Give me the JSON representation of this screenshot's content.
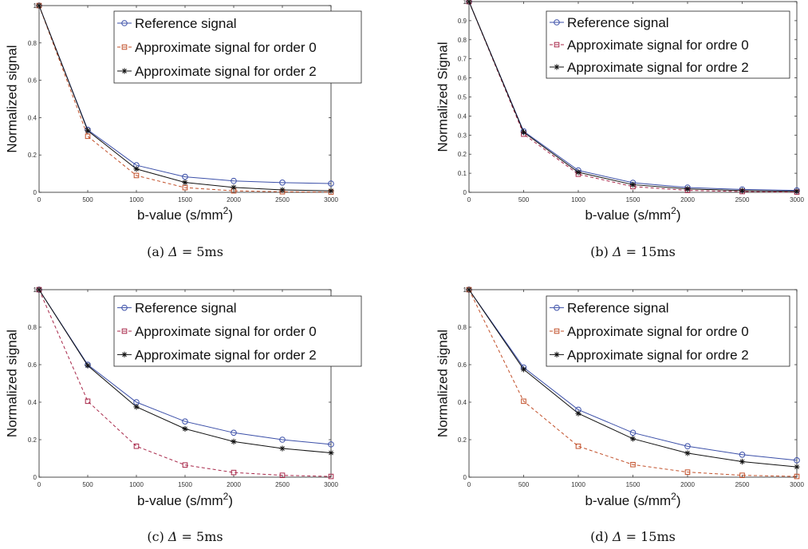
{
  "chart_data": [
    {
      "type": "line",
      "caption": {
        "prefix": "(a)",
        "symbol": "Δ",
        "value": " = 5ms"
      },
      "xlabel": "b-value (s/mm",
      "xlabel_sup": "2",
      "xlabel_suffix": ")",
      "ylabel": "Normalized signal",
      "xlim": [
        0,
        3000
      ],
      "ylim": [
        0,
        1
      ],
      "xticks": [
        0,
        500,
        1000,
        1500,
        2000,
        2500,
        3000
      ],
      "yticks": [
        0,
        0.2,
        0.4,
        0.6,
        0.8,
        1
      ],
      "legend_position": "top-right",
      "x": [
        0,
        500,
        1000,
        1500,
        2000,
        2500,
        3000
      ],
      "series": [
        {
          "name": "Reference signal",
          "values": [
            1,
            0.335,
            0.145,
            0.083,
            0.061,
            0.052,
            0.047
          ],
          "color": "#3b4fa8",
          "marker": "circle",
          "dash": "solid"
        },
        {
          "name": "Approximate signal for order 0",
          "values": [
            1,
            0.3,
            0.09,
            0.025,
            0.008,
            0.003,
            0.001
          ],
          "color": "#c2502a",
          "marker": "square",
          "dash": "dashed"
        },
        {
          "name": "Approximate signal for order 2",
          "values": [
            1,
            0.33,
            0.125,
            0.053,
            0.026,
            0.013,
            0.008
          ],
          "color": "#111111",
          "marker": "star",
          "dash": "solid"
        }
      ]
    },
    {
      "type": "line",
      "caption": {
        "prefix": "(b)",
        "symbol": "Δ",
        "value": " = 15ms"
      },
      "xlabel": "b-value (s/mm",
      "xlabel_sup": "2",
      "xlabel_suffix": ")",
      "ylabel": "Normalized Signal",
      "xlim": [
        0,
        3000
      ],
      "ylim": [
        0,
        1
      ],
      "xticks": [
        0,
        500,
        1000,
        1500,
        2000,
        2500,
        3000
      ],
      "yticks": [
        0,
        0.1,
        0.2,
        0.3,
        0.4,
        0.5,
        0.6,
        0.7,
        0.8,
        0.9,
        1
      ],
      "legend_position": "top-right",
      "x": [
        0,
        500,
        1000,
        1500,
        2000,
        2500,
        3000
      ],
      "series": [
        {
          "name": "Reference signal",
          "values": [
            1,
            0.32,
            0.115,
            0.05,
            0.025,
            0.015,
            0.01
          ],
          "color": "#3b4fa8",
          "marker": "circle",
          "dash": "solid"
        },
        {
          "name": "Approximate signal for ordre 0",
          "values": [
            1,
            0.305,
            0.095,
            0.03,
            0.01,
            0.004,
            0.001
          ],
          "color": "#a8284a",
          "marker": "square",
          "dash": "dashed"
        },
        {
          "name": "Approximate signal for ordre 2",
          "values": [
            1,
            0.315,
            0.105,
            0.04,
            0.018,
            0.009,
            0.005
          ],
          "color": "#111111",
          "marker": "star",
          "dash": "solid"
        }
      ]
    },
    {
      "type": "line",
      "caption": {
        "prefix": "(c)",
        "symbol": "Δ",
        "value": " = 5ms"
      },
      "xlabel": "b-value (s/mm",
      "xlabel_sup": "2",
      "xlabel_suffix": ")",
      "ylabel": "Normalized signal",
      "xlim": [
        0,
        3000
      ],
      "ylim": [
        0,
        1
      ],
      "xticks": [
        0,
        500,
        1000,
        1500,
        2000,
        2500,
        3000
      ],
      "yticks": [
        0,
        0.2,
        0.4,
        0.6,
        0.8,
        1
      ],
      "legend_position": "top-right",
      "x": [
        0,
        500,
        1000,
        1500,
        2000,
        2500,
        3000
      ],
      "series": [
        {
          "name": "Reference signal",
          "values": [
            1,
            0.6,
            0.4,
            0.297,
            0.237,
            0.2,
            0.175
          ],
          "color": "#3b4fa8",
          "marker": "circle",
          "dash": "solid"
        },
        {
          "name": "Approximate signal for order 0",
          "values": [
            1,
            0.405,
            0.165,
            0.065,
            0.025,
            0.01,
            0.004
          ],
          "color": "#a8284a",
          "marker": "square",
          "dash": "dashed"
        },
        {
          "name": "Approximate signal for order 2",
          "values": [
            1,
            0.595,
            0.375,
            0.258,
            0.19,
            0.153,
            0.13
          ],
          "color": "#111111",
          "marker": "star",
          "dash": "solid"
        }
      ]
    },
    {
      "type": "line",
      "caption": {
        "prefix": "(d)",
        "symbol": "Δ",
        "value": " = 15ms"
      },
      "xlabel": "b-value (s/mm",
      "xlabel_sup": "2",
      "xlabel_suffix": ")",
      "ylabel": "Normalized signal",
      "xlim": [
        0,
        3000
      ],
      "ylim": [
        0,
        1
      ],
      "xticks": [
        0,
        500,
        1000,
        1500,
        2000,
        2500,
        3000
      ],
      "yticks": [
        0,
        0.2,
        0.4,
        0.6,
        0.8,
        1
      ],
      "legend_position": "top-right",
      "x": [
        0,
        500,
        1000,
        1500,
        2000,
        2500,
        3000
      ],
      "series": [
        {
          "name": "Reference signal",
          "values": [
            1,
            0.585,
            0.36,
            0.237,
            0.165,
            0.12,
            0.09
          ],
          "color": "#3b4fa8",
          "marker": "circle",
          "dash": "solid"
        },
        {
          "name": "Approximate signal for ordre 0",
          "values": [
            1,
            0.405,
            0.165,
            0.067,
            0.027,
            0.01,
            0.004
          ],
          "color": "#c2502a",
          "marker": "square",
          "dash": "dashed"
        },
        {
          "name": "Approximate signal for ordre 2",
          "values": [
            1,
            0.575,
            0.34,
            0.205,
            0.128,
            0.083,
            0.055
          ],
          "color": "#111111",
          "marker": "star",
          "dash": "solid"
        }
      ]
    }
  ]
}
